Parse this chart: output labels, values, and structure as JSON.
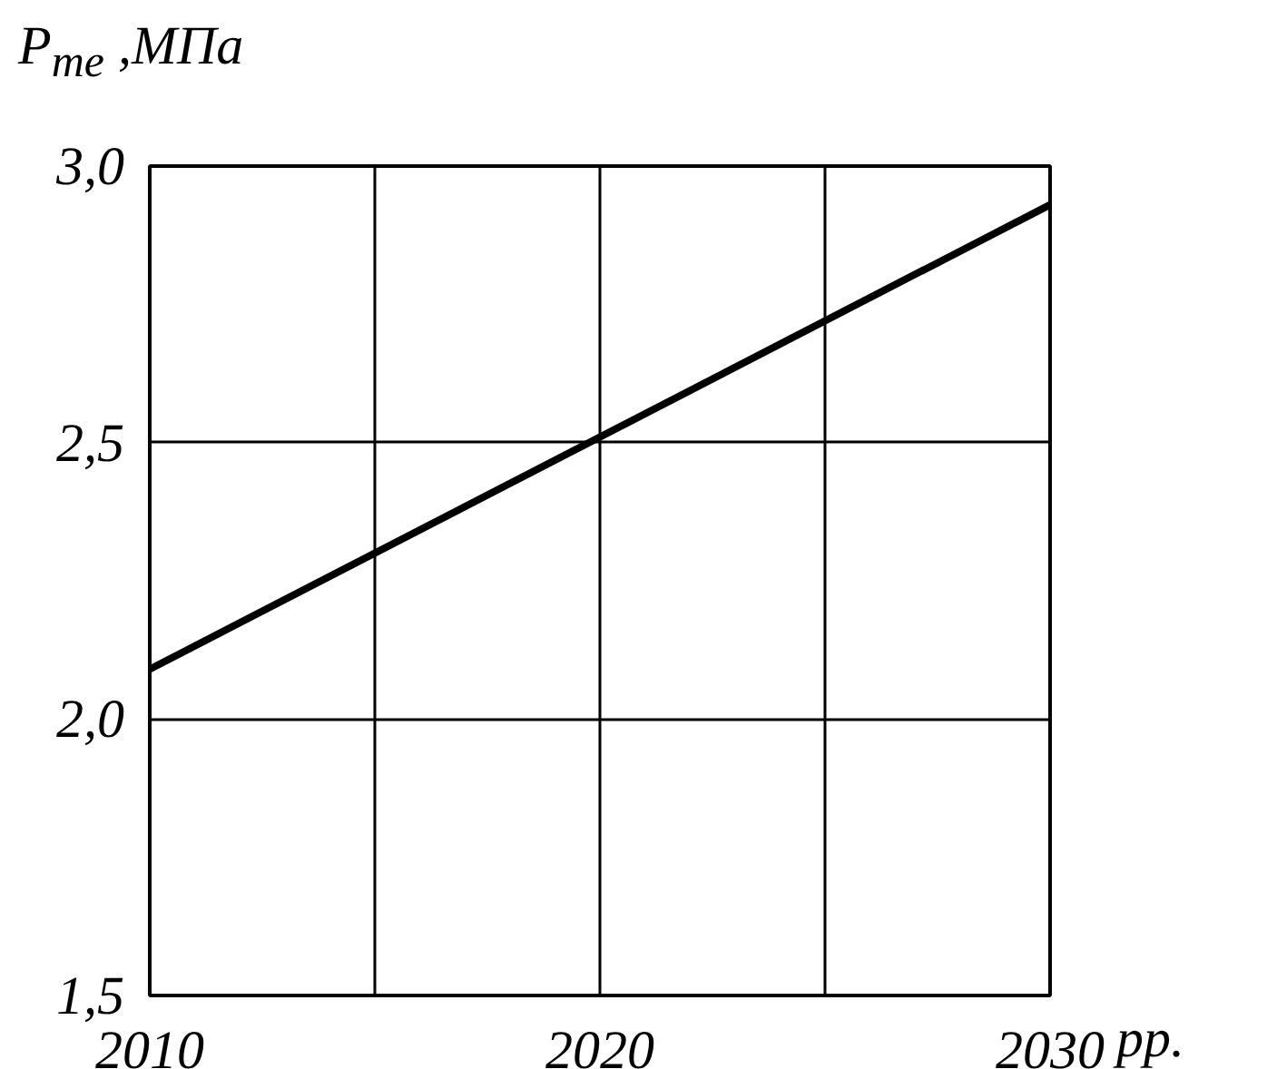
{
  "chart_data": {
    "type": "line",
    "ylabel": "P$_{me}$ ,МПа",
    "xlabel": "рр.",
    "x": [
      2010,
      2030
    ],
    "series": [
      {
        "color": "#000000",
        "values": [
          2.09,
          2.93
        ]
      }
    ],
    "xlim": [
      2010,
      2030
    ],
    "ylim": [
      1.5,
      3.0
    ],
    "xticks": [
      2010,
      {
        "value": 2015,
        "label": null
      },
      2020,
      {
        "value": 2025,
        "label": null
      },
      2030
    ],
    "yticks": [
      {
        "value": 1.5,
        "label": "1,5"
      },
      {
        "value": 2.0,
        "label": "2,0"
      },
      {
        "value": 2.5,
        "label": "2,5"
      },
      {
        "value": 3.0,
        "label": "3,0"
      }
    ],
    "grid": true,
    "marker": "none",
    "line_style": "solid"
  }
}
